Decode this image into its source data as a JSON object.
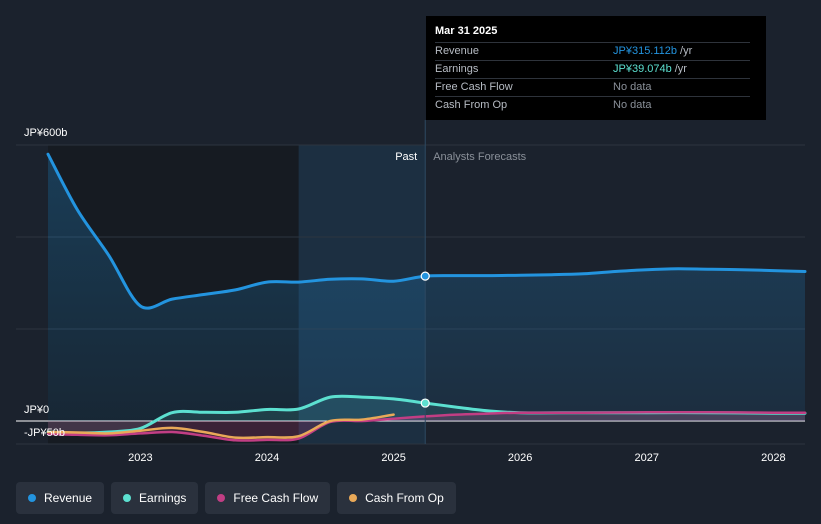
{
  "tooltip": {
    "date": "Mar 31 2025",
    "rows": [
      {
        "label": "Revenue",
        "value": "JP¥315.112b",
        "unit": "/yr",
        "color": "#2394df"
      },
      {
        "label": "Earnings",
        "value": "JP¥39.074b",
        "unit": "/yr",
        "color": "#5ce0d0"
      },
      {
        "label": "Free Cash Flow",
        "value": "No data",
        "unit": "",
        "color": "#8a9099"
      },
      {
        "label": "Cash From Op",
        "value": "No data",
        "unit": "",
        "color": "#8a9099"
      }
    ]
  },
  "chart_data": {
    "type": "line",
    "y_top_label": "JP¥600b",
    "y_zero_label": "JP¥0",
    "y_neg_label": "-JP¥50b",
    "ylim": [
      -50,
      600
    ],
    "xlim": [
      2022.27,
      2028.25
    ],
    "x_ticks": [
      2023,
      2024,
      2025,
      2026,
      2027,
      2028
    ],
    "x_tick_labels": [
      "2023",
      "2024",
      "2025",
      "2026",
      "2027",
      "2028"
    ],
    "past_label": "Past",
    "forecast_label": "Analysts Forecasts",
    "highlight_start": 2024.25,
    "forecast_start": 2025.25,
    "series": [
      {
        "name": "Revenue",
        "color": "#2394df",
        "x": [
          2022.27,
          2022.5,
          2022.75,
          2023.0,
          2023.25,
          2023.5,
          2023.75,
          2024.0,
          2024.25,
          2024.5,
          2024.75,
          2025.0,
          2025.25,
          2025.5,
          2025.75,
          2026.0,
          2026.25,
          2026.5,
          2026.75,
          2027.0,
          2027.25,
          2027.5,
          2027.75,
          2028.0,
          2028.25
        ],
        "values": [
          580,
          460,
          360,
          250,
          265,
          275,
          285,
          302,
          302,
          308,
          309,
          304,
          315,
          316,
          316,
          317,
          318,
          320,
          325,
          329,
          331,
          330,
          329,
          327,
          325
        ]
      },
      {
        "name": "Earnings",
        "color": "#5ce0d0",
        "x": [
          2022.27,
          2022.5,
          2022.75,
          2023.0,
          2023.25,
          2023.5,
          2023.75,
          2024.0,
          2024.25,
          2024.5,
          2024.75,
          2025.0,
          2025.25,
          2025.5,
          2025.75,
          2026.0,
          2026.5,
          2027.0,
          2027.5,
          2028.0,
          2028.25
        ],
        "values": [
          -24,
          -26,
          -24,
          -16,
          18,
          19,
          19,
          25,
          26,
          52,
          52,
          48,
          39,
          30,
          22,
          18,
          18,
          18,
          18,
          17,
          17
        ]
      },
      {
        "name": "Free Cash Flow",
        "color": "#c13e84",
        "x": [
          2022.27,
          2022.5,
          2022.75,
          2023.0,
          2023.25,
          2023.5,
          2023.75,
          2024.0,
          2024.25,
          2024.5,
          2024.75,
          2025.0,
          2025.25,
          2025.5,
          2025.75,
          2026.0,
          2026.5,
          2027.0,
          2027.5,
          2028.0,
          2028.25
        ],
        "values": [
          -28,
          -30,
          -31,
          -27,
          -24,
          -32,
          -42,
          -41,
          -38,
          -2,
          0,
          5,
          10,
          14,
          16,
          18,
          18,
          19,
          19,
          18,
          18
        ]
      },
      {
        "name": "Cash From Op",
        "color": "#e9a958",
        "x": [
          2022.27,
          2022.5,
          2022.75,
          2023.0,
          2023.25,
          2023.5,
          2023.75,
          2024.0,
          2024.25,
          2024.5,
          2024.75,
          2025.0
        ],
        "values": [
          -24,
          -25,
          -27,
          -21,
          -15,
          -24,
          -36,
          -35,
          -33,
          0,
          3,
          14
        ]
      }
    ],
    "current_x": 2025.25
  },
  "legend": [
    {
      "label": "Revenue",
      "color": "#2394df"
    },
    {
      "label": "Earnings",
      "color": "#5ce0d0"
    },
    {
      "label": "Free Cash Flow",
      "color": "#c13e84"
    },
    {
      "label": "Cash From Op",
      "color": "#e9a958"
    }
  ]
}
